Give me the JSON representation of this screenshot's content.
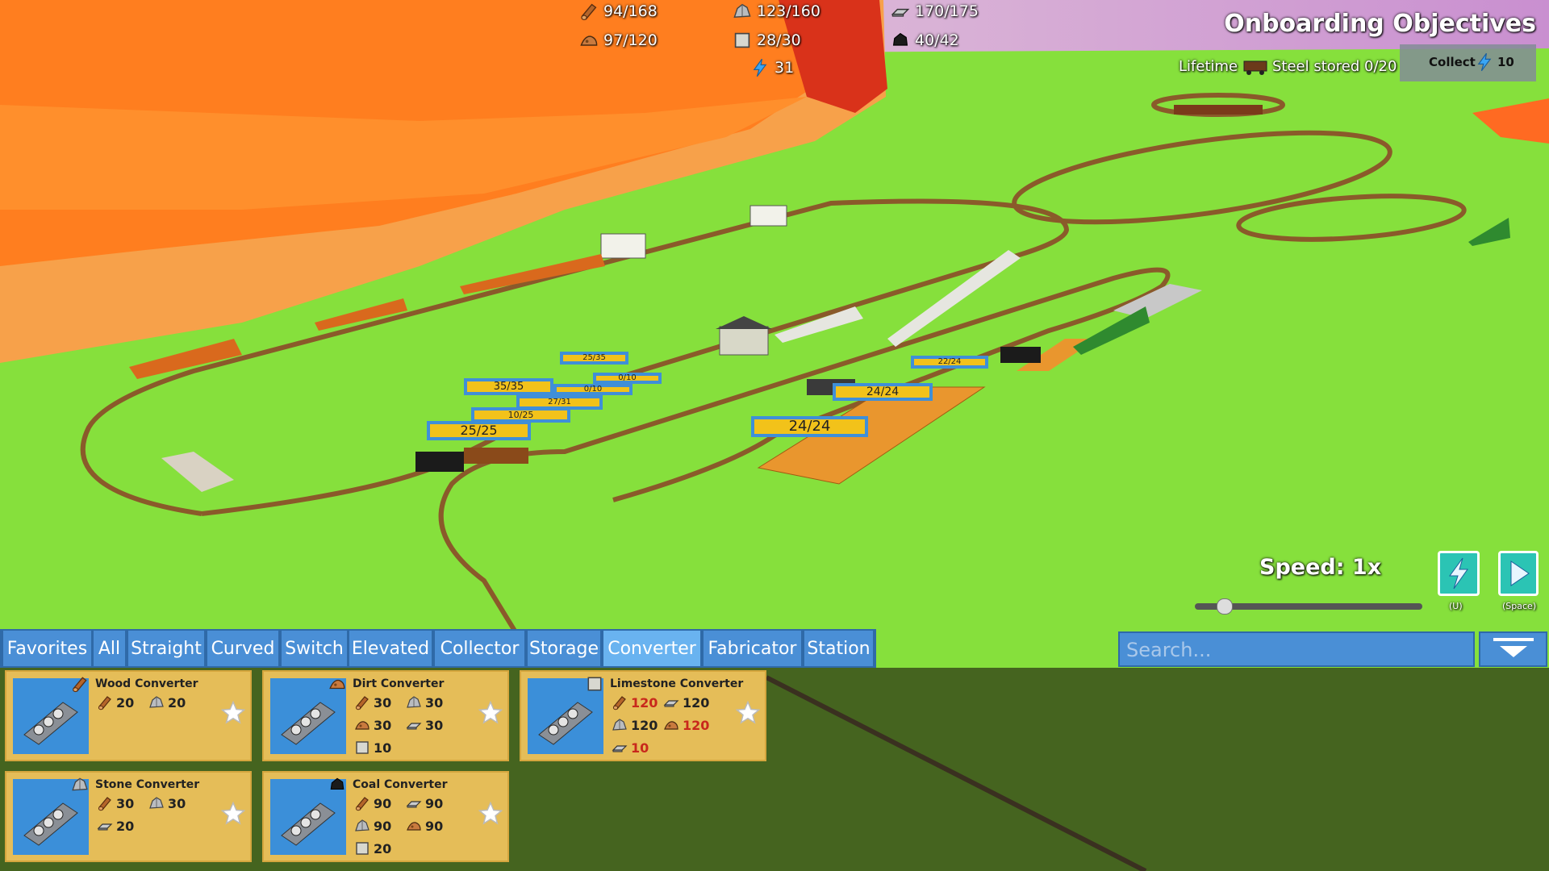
{
  "resources": [
    "94/168",
    "123/160",
    "170/175",
    "97/120",
    "28/30",
    "40/42",
    "31"
  ],
  "objectives": {
    "title": "Onboarding Objectives",
    "label": "Lifetime",
    "task": "Steel stored 0/20",
    "button": "Collect",
    "reward": 10
  },
  "speed": {
    "label": "Speed: 1x",
    "buttons": [
      "(U)",
      "(Space)"
    ]
  },
  "tabs": [
    "Favorites",
    "All",
    "Straight",
    "Curved",
    "Switch",
    "Elevated",
    "Collector",
    "Storage",
    "Converter",
    "Fabricator",
    "Station"
  ],
  "selected_tab": "Converter",
  "search_placeholder": "Search...",
  "cards": [
    {
      "name": "Wood Converter",
      "costs": [
        20,
        20
      ]
    },
    {
      "name": "Dirt Converter",
      "costs": [
        30,
        30,
        30,
        30,
        10
      ]
    },
    {
      "name": "Limestone Converter",
      "costs": [
        {
          "value": 120,
          "color": "#c8281c"
        },
        120,
        120,
        {
          "value": 120,
          "color": "#c8281c"
        },
        {
          "value": 10,
          "color": "#c8281c"
        }
      ]
    },
    {
      "name": "Stone Converter",
      "costs": [
        30,
        30,
        20
      ]
    },
    {
      "name": "Coal Converter",
      "costs": [
        90,
        90,
        90,
        90,
        20
      ]
    }
  ],
  "world_labels": [
    "35/35",
    "27/31",
    "10/25",
    "25/25",
    "24/24",
    "24/24",
    "22/24",
    "25/35",
    "0/10",
    "0/10"
  ]
}
